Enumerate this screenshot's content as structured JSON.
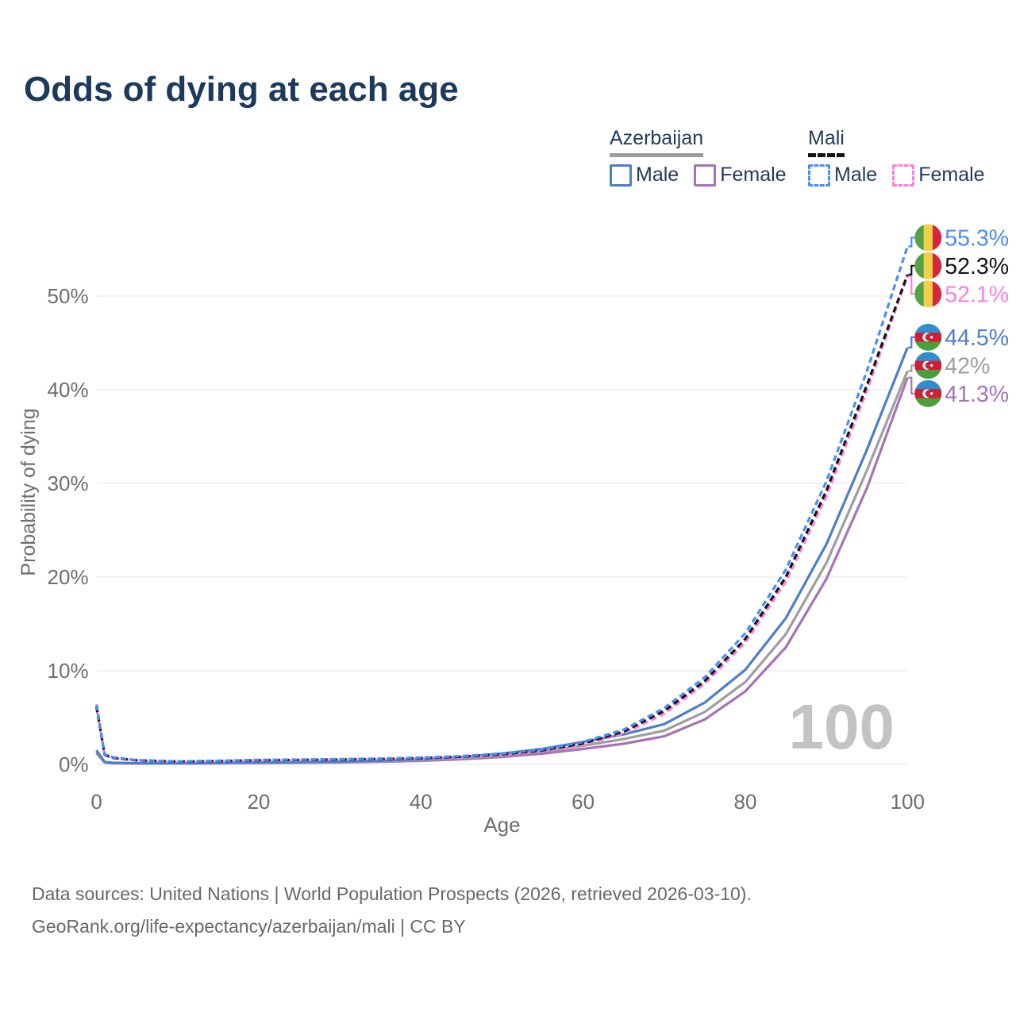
{
  "title": "Odds of dying at each age",
  "legend": {
    "groups": [
      {
        "label": "Azerbaijan",
        "line_style": "solid",
        "line_color": "#9b9b9b",
        "items": [
          {
            "label": "Male",
            "color": "#4d7ec8",
            "dashed": false
          },
          {
            "label": "Female",
            "color": "#a873b5",
            "dashed": false
          }
        ]
      },
      {
        "label": "Mali",
        "line_style": "dashed",
        "line_color": "#141414",
        "items": [
          {
            "label": "Male",
            "color": "#4b8df2",
            "dashed": true
          },
          {
            "label": "Female",
            "color": "#fb7fe1",
            "dashed": true
          }
        ]
      }
    ]
  },
  "chart_data": {
    "type": "line",
    "title": "Odds of dying at each age",
    "xlabel": "Age",
    "ylabel": "Probability of dying",
    "xlim": [
      0,
      100
    ],
    "ylim_pct": [
      0,
      57
    ],
    "grid": "horizontal",
    "legend_position": "top-right",
    "watermark": "100",
    "x_ticks": [
      0,
      20,
      40,
      60,
      80,
      100
    ],
    "y_ticks_pct": [
      0,
      10,
      20,
      30,
      40,
      50
    ],
    "y_tick_labels": [
      "0%",
      "10%",
      "20%",
      "30%",
      "40%",
      "50%"
    ],
    "ages": [
      0,
      1,
      2,
      5,
      10,
      15,
      20,
      25,
      30,
      35,
      40,
      45,
      50,
      55,
      60,
      65,
      70,
      75,
      80,
      85,
      90,
      95,
      100
    ],
    "series": [
      {
        "name": "Mali Male",
        "country": "mali",
        "sex": "Male",
        "color": "#4b8df2",
        "dashed": true,
        "end_label": "55.3%",
        "end_value": 55.3,
        "values_pct": [
          6.4,
          1.1,
          0.75,
          0.45,
          0.32,
          0.38,
          0.48,
          0.52,
          0.56,
          0.62,
          0.72,
          0.88,
          1.15,
          1.6,
          2.4,
          3.7,
          6.0,
          9.3,
          14.0,
          20.8,
          30.2,
          42.0,
          55.3
        ]
      },
      {
        "name": "Mali Both sexes",
        "country": "mali",
        "sex": "Both",
        "color": "#141414",
        "dashed": true,
        "end_label": "52.3%",
        "end_value": 52.3,
        "values_pct": [
          6.2,
          1.05,
          0.7,
          0.43,
          0.3,
          0.35,
          0.44,
          0.48,
          0.52,
          0.58,
          0.67,
          0.82,
          1.07,
          1.5,
          2.25,
          3.5,
          5.7,
          8.9,
          13.4,
          20.0,
          29.2,
          40.5,
          52.3
        ]
      },
      {
        "name": "Mali Female",
        "country": "mali",
        "sex": "Female",
        "color": "#fb7fe1",
        "dashed": true,
        "end_label": "52.1%",
        "end_value": 52.1,
        "values_pct": [
          6.0,
          1.0,
          0.67,
          0.41,
          0.29,
          0.33,
          0.41,
          0.45,
          0.49,
          0.54,
          0.63,
          0.77,
          1.0,
          1.4,
          2.1,
          3.3,
          5.4,
          8.6,
          13.0,
          19.5,
          28.6,
          39.9,
          52.1
        ]
      },
      {
        "name": "Azerbaijan Male",
        "country": "azerbaijan",
        "sex": "Male",
        "color": "#4d7ec8",
        "dashed": false,
        "end_label": "44.5%",
        "end_value": 44.5,
        "values_pct": [
          1.5,
          0.25,
          0.17,
          0.12,
          0.11,
          0.15,
          0.2,
          0.24,
          0.3,
          0.4,
          0.55,
          0.8,
          1.15,
          1.65,
          2.4,
          3.2,
          4.3,
          6.6,
          10.1,
          15.6,
          23.5,
          33.6,
          44.5
        ]
      },
      {
        "name": "Azerbaijan Both sexes",
        "country": "azerbaijan",
        "sex": "Both",
        "color": "#9e9e9e",
        "dashed": false,
        "end_label": "42%",
        "end_value": 42.0,
        "values_pct": [
          1.35,
          0.22,
          0.15,
          0.11,
          0.1,
          0.13,
          0.17,
          0.2,
          0.26,
          0.34,
          0.47,
          0.68,
          0.98,
          1.4,
          2.0,
          2.7,
          3.6,
          5.6,
          8.8,
          13.9,
          21.5,
          31.4,
          42.0
        ]
      },
      {
        "name": "Azerbaijan Female",
        "country": "azerbaijan",
        "sex": "Female",
        "color": "#a873b5",
        "dashed": false,
        "end_label": "41.3%",
        "end_value": 41.3,
        "values_pct": [
          1.2,
          0.2,
          0.13,
          0.1,
          0.09,
          0.11,
          0.14,
          0.17,
          0.21,
          0.28,
          0.38,
          0.55,
          0.8,
          1.15,
          1.65,
          2.2,
          3.0,
          4.8,
          7.8,
          12.5,
          19.8,
          29.5,
          41.3
        ]
      }
    ]
  },
  "flags": {
    "mali": {
      "orientation": "vertical",
      "colors": [
        "#55a345",
        "#f0d04b",
        "#d8263c"
      ]
    },
    "azerbaijan": {
      "orientation": "horizontal",
      "colors": [
        "#2f8ecb",
        "#d01f34",
        "#4b9e3c"
      ]
    }
  },
  "footer": {
    "line1": "Data sources: United Nations | World Population Prospects (2026, retrieved 2026-03-10).",
    "line2": "GeoRank.org/life-expectancy/azerbaijan/mali | CC BY"
  }
}
